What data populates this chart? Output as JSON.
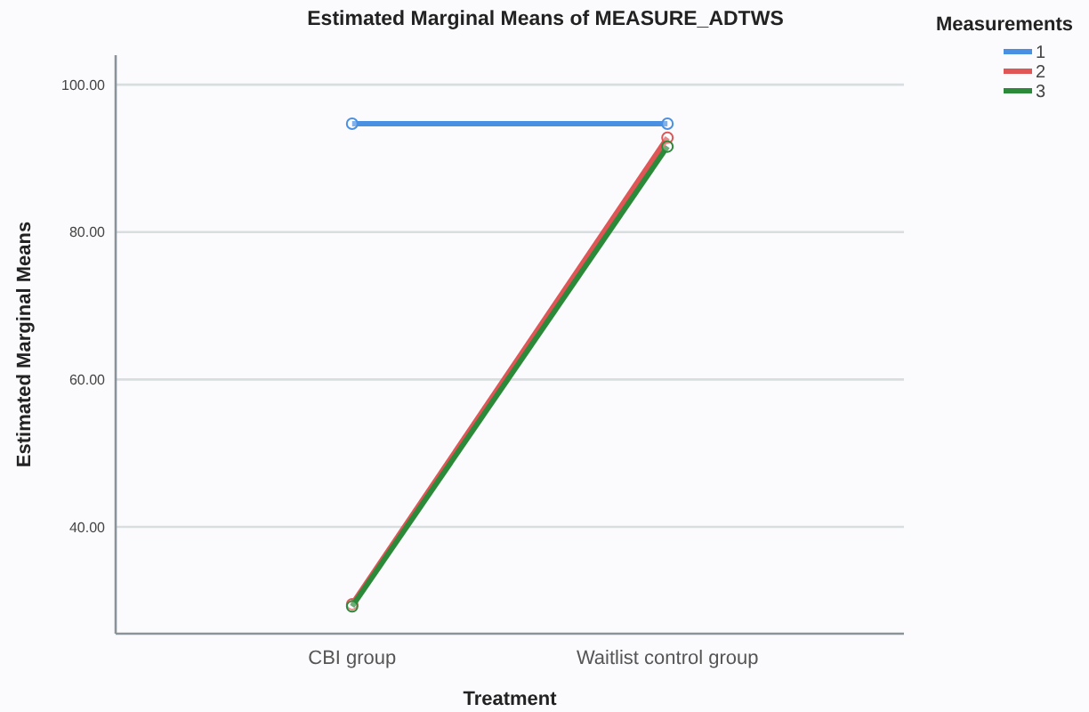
{
  "chart_data": {
    "type": "line",
    "title": "Estimated Marginal Means of MEASURE_ADTWS",
    "xlabel": "Treatment",
    "ylabel": "Estimated Marginal Means",
    "legend_title": "Measurements",
    "categories": [
      "CBI group",
      "Waitlist control group"
    ],
    "series": [
      {
        "name": "1",
        "color": "#4a90e2",
        "values": [
          94.7,
          94.7
        ]
      },
      {
        "name": "2",
        "color": "#e05555",
        "values": [
          29.5,
          92.8
        ]
      },
      {
        "name": "3",
        "color": "#2a8a3a",
        "values": [
          29.2,
          91.6
        ]
      }
    ],
    "ylim": [
      25.5,
      104
    ],
    "yticks": [
      {
        "value": 40,
        "label": "40.00"
      },
      {
        "value": 60,
        "label": "60.00"
      },
      {
        "value": 80,
        "label": "80.00"
      },
      {
        "value": 100,
        "label": "100.00"
      }
    ],
    "grid": "y",
    "legend": "top right",
    "marker": "circle",
    "line_style": "solid"
  }
}
